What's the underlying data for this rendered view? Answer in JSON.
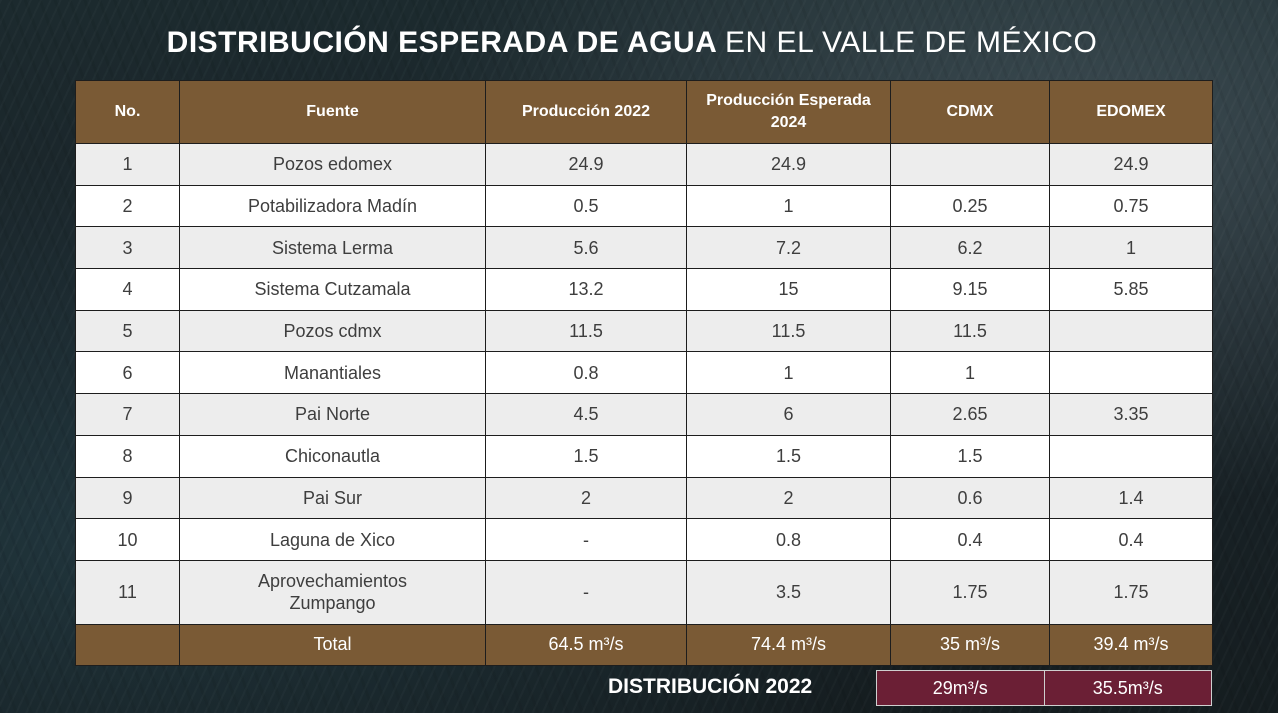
{
  "title": {
    "bold": "DISTRIBUCIÓN ESPERADA DE AGUA",
    "light": "EN EL VALLE DE MÉXICO"
  },
  "table": {
    "headers": [
      "No.",
      "Fuente",
      "Producción 2022",
      "Producción Esperada 2024",
      "CDMX",
      "EDOMEX"
    ],
    "rows": [
      [
        "1",
        "Pozos edomex",
        "24.9",
        "24.9",
        "",
        "24.9"
      ],
      [
        "2",
        "Potabilizadora Madín",
        "0.5",
        "1",
        "0.25",
        "0.75"
      ],
      [
        "3",
        "Sistema Lerma",
        "5.6",
        "7.2",
        "6.2",
        "1"
      ],
      [
        "4",
        "Sistema Cutzamala",
        "13.2",
        "15",
        "9.15",
        "5.85"
      ],
      [
        "5",
        "Pozos cdmx",
        "11.5",
        "11.5",
        "11.5",
        ""
      ],
      [
        "6",
        "Manantiales",
        "0.8",
        "1",
        "1",
        ""
      ],
      [
        "7",
        "Pai Norte",
        "4.5",
        "6",
        "2.65",
        "3.35"
      ],
      [
        "8",
        "Chiconautla",
        "1.5",
        "1.5",
        "1.5",
        ""
      ],
      [
        "9",
        "Pai Sur",
        "2",
        "2",
        "0.6",
        "1.4"
      ],
      [
        "10",
        "Laguna de Xico",
        "-",
        "0.8",
        "0.4",
        "0.4"
      ],
      [
        "11",
        "Aprovechamientos Zumpango",
        "-",
        "3.5",
        "1.75",
        "1.75"
      ]
    ],
    "total": [
      "",
      "Total",
      "64.5 m³/s",
      "74.4 m³/s",
      "35 m³/s",
      "39.4 m³/s"
    ]
  },
  "footer": {
    "label": "DISTRIBUCIÓN 2022",
    "cdmx": "29m³/s",
    "edomex": "35.5m³/s"
  },
  "colors": {
    "header_bg": "#7a5a35",
    "footer_box_bg": "#6b1f35",
    "row_alt_bg": "#ededed"
  }
}
